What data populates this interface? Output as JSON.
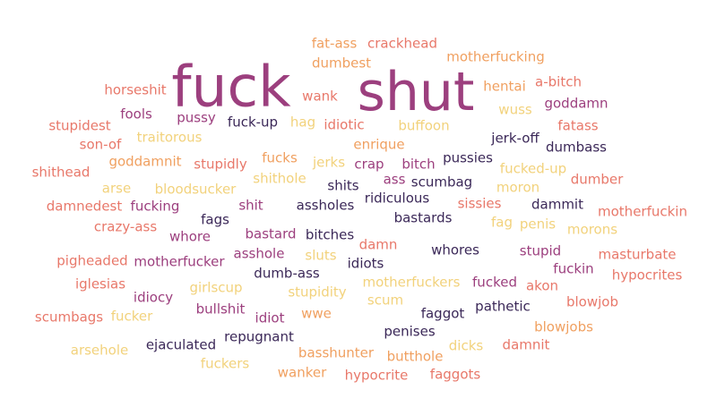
{
  "palette": {
    "plum": "#9c3f7e",
    "navy": "#3b2858",
    "salmon": "#e8786a",
    "peach": "#f0a060",
    "sand": "#f2d27c"
  },
  "words": [
    {
      "text": "fuck",
      "color": "plum",
      "weight": 100
    },
    {
      "text": "shut",
      "color": "plum",
      "weight": 95
    },
    {
      "text": "fat-ass",
      "color": "peach",
      "weight": 20
    },
    {
      "text": "crackhead",
      "color": "salmon",
      "weight": 20
    },
    {
      "text": "dumbest",
      "color": "peach",
      "weight": 20
    },
    {
      "text": "motherfucking",
      "color": "peach",
      "weight": 20
    },
    {
      "text": "horseshit",
      "color": "salmon",
      "weight": 20
    },
    {
      "text": "wank",
      "color": "salmon",
      "weight": 20
    },
    {
      "text": "hentai",
      "color": "peach",
      "weight": 20
    },
    {
      "text": "a-bitch",
      "color": "salmon",
      "weight": 20
    },
    {
      "text": "goddamn",
      "color": "plum",
      "weight": 20
    },
    {
      "text": "stupidest",
      "color": "salmon",
      "weight": 20
    },
    {
      "text": "fools",
      "color": "plum",
      "weight": 20
    },
    {
      "text": "pussy",
      "color": "plum",
      "weight": 20
    },
    {
      "text": "fuck-up",
      "color": "navy",
      "weight": 20
    },
    {
      "text": "hag",
      "color": "sand",
      "weight": 20
    },
    {
      "text": "idiotic",
      "color": "salmon",
      "weight": 20
    },
    {
      "text": "buffoon",
      "color": "sand",
      "weight": 20
    },
    {
      "text": "wuss",
      "color": "sand",
      "weight": 20
    },
    {
      "text": "fatass",
      "color": "salmon",
      "weight": 20
    },
    {
      "text": "son-of",
      "color": "salmon",
      "weight": 20
    },
    {
      "text": "traitorous",
      "color": "sand",
      "weight": 20
    },
    {
      "text": "jerk-off",
      "color": "navy",
      "weight": 20
    },
    {
      "text": "enrique",
      "color": "peach",
      "weight": 20
    },
    {
      "text": "dumbass",
      "color": "navy",
      "weight": 20
    },
    {
      "text": "shithead",
      "color": "salmon",
      "weight": 20
    },
    {
      "text": "goddamnit",
      "color": "peach",
      "weight": 20
    },
    {
      "text": "stupidly",
      "color": "salmon",
      "weight": 20
    },
    {
      "text": "fucks",
      "color": "peach",
      "weight": 20
    },
    {
      "text": "jerks",
      "color": "sand",
      "weight": 20
    },
    {
      "text": "crap",
      "color": "plum",
      "weight": 20
    },
    {
      "text": "bitch",
      "color": "plum",
      "weight": 20
    },
    {
      "text": "pussies",
      "color": "navy",
      "weight": 20
    },
    {
      "text": "fucked-up",
      "color": "sand",
      "weight": 20
    },
    {
      "text": "shithole",
      "color": "sand",
      "weight": 20
    },
    {
      "text": "ass",
      "color": "plum",
      "weight": 20
    },
    {
      "text": "scumbag",
      "color": "navy",
      "weight": 20
    },
    {
      "text": "dumber",
      "color": "salmon",
      "weight": 20
    },
    {
      "text": "arse",
      "color": "sand",
      "weight": 20
    },
    {
      "text": "bloodsucker",
      "color": "sand",
      "weight": 20
    },
    {
      "text": "shits",
      "color": "navy",
      "weight": 20
    },
    {
      "text": "moron",
      "color": "sand",
      "weight": 20
    },
    {
      "text": "ridiculous",
      "color": "navy",
      "weight": 20
    },
    {
      "text": "damnedest",
      "color": "salmon",
      "weight": 20
    },
    {
      "text": "fucking",
      "color": "plum",
      "weight": 20
    },
    {
      "text": "shit",
      "color": "plum",
      "weight": 20
    },
    {
      "text": "assholes",
      "color": "navy",
      "weight": 20
    },
    {
      "text": "sissies",
      "color": "salmon",
      "weight": 20
    },
    {
      "text": "dammit",
      "color": "navy",
      "weight": 20
    },
    {
      "text": "motherfuckin",
      "color": "salmon",
      "weight": 20
    },
    {
      "text": "fags",
      "color": "navy",
      "weight": 20
    },
    {
      "text": "bastards",
      "color": "navy",
      "weight": 20
    },
    {
      "text": "crazy-ass",
      "color": "salmon",
      "weight": 20
    },
    {
      "text": "fag",
      "color": "sand",
      "weight": 20
    },
    {
      "text": "penis",
      "color": "sand",
      "weight": 20
    },
    {
      "text": "morons",
      "color": "sand",
      "weight": 20
    },
    {
      "text": "whore",
      "color": "plum",
      "weight": 20
    },
    {
      "text": "bastard",
      "color": "plum",
      "weight": 20
    },
    {
      "text": "bitches",
      "color": "navy",
      "weight": 20
    },
    {
      "text": "damn",
      "color": "salmon",
      "weight": 20
    },
    {
      "text": "whores",
      "color": "navy",
      "weight": 20
    },
    {
      "text": "stupid",
      "color": "plum",
      "weight": 20
    },
    {
      "text": "masturbate",
      "color": "salmon",
      "weight": 20
    },
    {
      "text": "pigheaded",
      "color": "salmon",
      "weight": 20
    },
    {
      "text": "motherfucker",
      "color": "plum",
      "weight": 20
    },
    {
      "text": "asshole",
      "color": "plum",
      "weight": 20
    },
    {
      "text": "sluts",
      "color": "sand",
      "weight": 20
    },
    {
      "text": "idiots",
      "color": "navy",
      "weight": 20
    },
    {
      "text": "fuckin",
      "color": "plum",
      "weight": 20
    },
    {
      "text": "hypocrites",
      "color": "salmon",
      "weight": 20
    },
    {
      "text": "dumb-ass",
      "color": "navy",
      "weight": 20
    },
    {
      "text": "iglesias",
      "color": "salmon",
      "weight": 20
    },
    {
      "text": "girlscup",
      "color": "sand",
      "weight": 20
    },
    {
      "text": "motherfuckers",
      "color": "sand",
      "weight": 20
    },
    {
      "text": "fucked",
      "color": "plum",
      "weight": 20
    },
    {
      "text": "akon",
      "color": "salmon",
      "weight": 20
    },
    {
      "text": "idiocy",
      "color": "plum",
      "weight": 20
    },
    {
      "text": "stupidity",
      "color": "sand",
      "weight": 20
    },
    {
      "text": "scum",
      "color": "sand",
      "weight": 20
    },
    {
      "text": "blowjob",
      "color": "salmon",
      "weight": 20
    },
    {
      "text": "bullshit",
      "color": "plum",
      "weight": 20
    },
    {
      "text": "pathetic",
      "color": "navy",
      "weight": 20
    },
    {
      "text": "scumbags",
      "color": "salmon",
      "weight": 20
    },
    {
      "text": "fucker",
      "color": "sand",
      "weight": 20
    },
    {
      "text": "idiot",
      "color": "plum",
      "weight": 20
    },
    {
      "text": "wwe",
      "color": "peach",
      "weight": 20
    },
    {
      "text": "faggot",
      "color": "navy",
      "weight": 20
    },
    {
      "text": "blowjobs",
      "color": "peach",
      "weight": 20
    },
    {
      "text": "repugnant",
      "color": "navy",
      "weight": 20
    },
    {
      "text": "penises",
      "color": "navy",
      "weight": 20
    },
    {
      "text": "arsehole",
      "color": "sand",
      "weight": 20
    },
    {
      "text": "ejaculated",
      "color": "navy",
      "weight": 20
    },
    {
      "text": "basshunter",
      "color": "peach",
      "weight": 20
    },
    {
      "text": "dicks",
      "color": "sand",
      "weight": 20
    },
    {
      "text": "damnit",
      "color": "salmon",
      "weight": 20
    },
    {
      "text": "fuckers",
      "color": "sand",
      "weight": 20
    },
    {
      "text": "butthole",
      "color": "peach",
      "weight": 20
    },
    {
      "text": "wanker",
      "color": "peach",
      "weight": 20
    },
    {
      "text": "hypocrite",
      "color": "salmon",
      "weight": 20
    },
    {
      "text": "faggots",
      "color": "salmon",
      "weight": 20
    }
  ]
}
